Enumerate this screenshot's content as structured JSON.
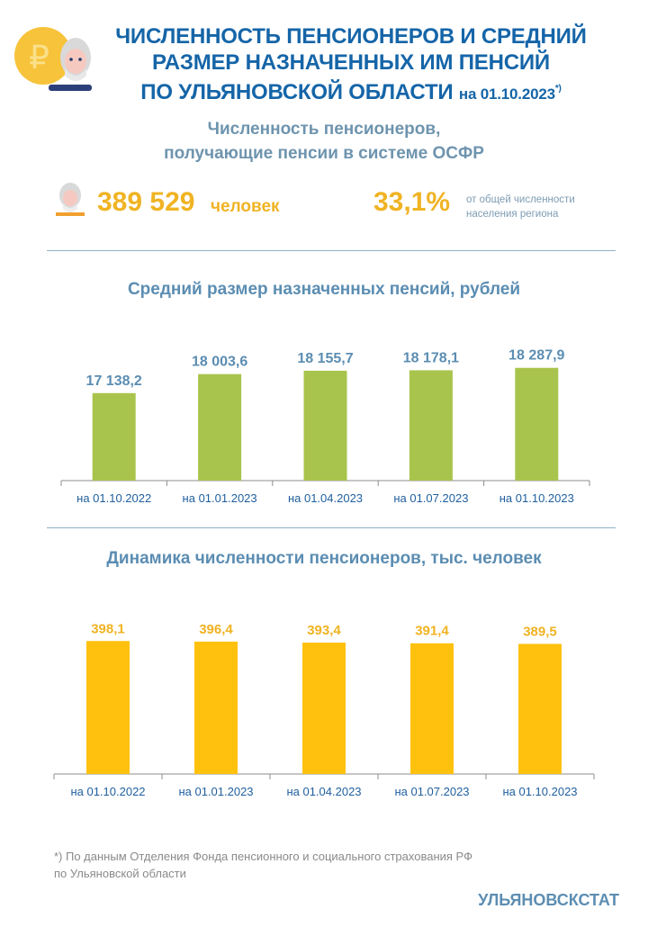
{
  "header": {
    "title_line1": "ЧИСЛЕННОСТЬ ПЕНСИОНЕРОВ И СРЕДНИЙ",
    "title_line2": "РАЗМЕР НАЗНАЧЕННЫХ ИМ ПЕНСИЙ",
    "title_line3": "ПО  УЛЬЯНОВСКОЙ ОБЛАСТИ",
    "title_date": "на 01.10.2023",
    "title_footnote_mark": "*)",
    "icon": "pensioner-coin-icon"
  },
  "summary": {
    "subtitle_line1": "Численность  пенсионеров,",
    "subtitle_line2": "получающие пенсии в системе ОСФР",
    "count": "389 529",
    "count_unit": "человек",
    "percent": "33,1%",
    "percent_note_line1": "от общей численности",
    "percent_note_line2": "населения региона",
    "icon": "pensioner-icon"
  },
  "chart_data": [
    {
      "type": "bar",
      "title": "Средний размер назначенных пенсий, рублей",
      "categories": [
        "на 01.10.2022",
        "на 01.01.2023",
        "на 01.04.2023",
        "на 01.07.2023",
        "на 01.10.2023"
      ],
      "values": [
        17138.2,
        18003.6,
        18155.7,
        18178.1,
        18287.9
      ],
      "data_labels": [
        "17 138,2",
        "18 003,6",
        "18 155,7",
        "18 178,1",
        "18 287,9"
      ],
      "ylim": [
        13150,
        20000
      ],
      "grid": false,
      "bar_color": "#a9c44c",
      "label_color": "#5b8db2"
    },
    {
      "type": "bar",
      "title": "Динамика численности пенсионеров, тыс. человек",
      "categories": [
        "на 01.10.2022",
        "на 01.01.2023",
        "на 01.04.2023",
        "на 01.07.2023",
        "на 01.10.2023"
      ],
      "values": [
        398.1,
        396.4,
        393.4,
        391.4,
        389.5
      ],
      "data_labels": [
        "398,1",
        "396,4",
        "393,4",
        "391,4",
        "389,5"
      ],
      "ylim": [
        0,
        450
      ],
      "grid": false,
      "bar_color": "#ffc10e",
      "label_color": "#f0b323"
    }
  ],
  "footer": {
    "note_line1": "*) По данным Отделения Фонда пенсионного и социального страхования РФ",
    "note_line2": "по Ульяновской области",
    "brand": "УЛЬЯНОВСКСТАТ"
  }
}
